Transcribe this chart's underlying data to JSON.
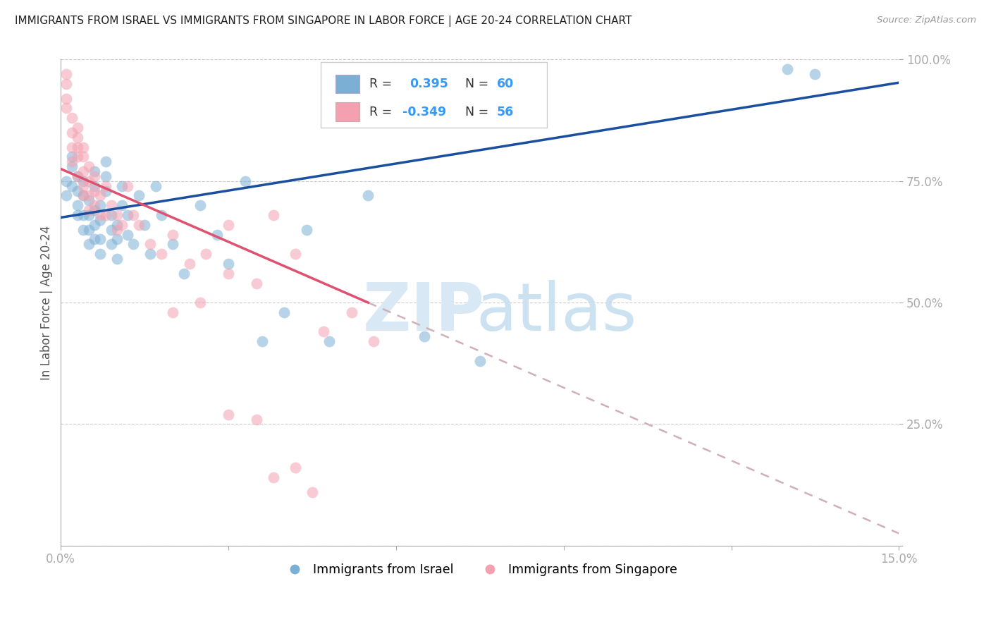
{
  "title": "IMMIGRANTS FROM ISRAEL VS IMMIGRANTS FROM SINGAPORE IN LABOR FORCE | AGE 20-24 CORRELATION CHART",
  "source": "Source: ZipAtlas.com",
  "ylabel": "In Labor Force | Age 20-24",
  "israel_color": "#7bafd4",
  "singapore_color": "#f4a0b0",
  "trendline_israel_color": "#1a4fa0",
  "trendline_singapore_color": "#e05070",
  "trendline_dashed_color": "#d0b0b8",
  "background_color": "#ffffff",
  "grid_color": "#cccccc",
  "title_color": "#222222",
  "axis_color": "#3399ff",
  "legend_box_color": "#eeeeee",
  "israel_scatter_x": [
    0.001,
    0.001,
    0.002,
    0.002,
    0.002,
    0.003,
    0.003,
    0.003,
    0.003,
    0.004,
    0.004,
    0.004,
    0.004,
    0.005,
    0.005,
    0.005,
    0.005,
    0.006,
    0.006,
    0.006,
    0.006,
    0.006,
    0.007,
    0.007,
    0.007,
    0.007,
    0.008,
    0.008,
    0.008,
    0.009,
    0.009,
    0.009,
    0.01,
    0.01,
    0.01,
    0.011,
    0.011,
    0.012,
    0.012,
    0.013,
    0.014,
    0.015,
    0.016,
    0.017,
    0.018,
    0.02,
    0.022,
    0.025,
    0.028,
    0.03,
    0.033,
    0.036,
    0.04,
    0.044,
    0.048,
    0.055,
    0.065,
    0.075,
    0.13,
    0.135
  ],
  "israel_scatter_y": [
    0.72,
    0.75,
    0.78,
    0.8,
    0.74,
    0.7,
    0.73,
    0.76,
    0.68,
    0.65,
    0.68,
    0.72,
    0.75,
    0.62,
    0.65,
    0.68,
    0.71,
    0.74,
    0.77,
    0.63,
    0.66,
    0.69,
    0.6,
    0.63,
    0.67,
    0.7,
    0.73,
    0.76,
    0.79,
    0.62,
    0.65,
    0.68,
    0.59,
    0.63,
    0.66,
    0.7,
    0.74,
    0.64,
    0.68,
    0.62,
    0.72,
    0.66,
    0.6,
    0.74,
    0.68,
    0.62,
    0.56,
    0.7,
    0.64,
    0.58,
    0.75,
    0.42,
    0.48,
    0.65,
    0.42,
    0.72,
    0.43,
    0.38,
    0.98,
    0.97
  ],
  "singapore_scatter_x": [
    0.001,
    0.001,
    0.001,
    0.001,
    0.002,
    0.002,
    0.002,
    0.002,
    0.003,
    0.003,
    0.003,
    0.003,
    0.003,
    0.004,
    0.004,
    0.004,
    0.004,
    0.004,
    0.005,
    0.005,
    0.005,
    0.005,
    0.006,
    0.006,
    0.006,
    0.007,
    0.007,
    0.008,
    0.008,
    0.009,
    0.01,
    0.01,
    0.011,
    0.012,
    0.013,
    0.014,
    0.016,
    0.018,
    0.02,
    0.023,
    0.026,
    0.03,
    0.035,
    0.038,
    0.042,
    0.047,
    0.052,
    0.056,
    0.03,
    0.035,
    0.042,
    0.02,
    0.025,
    0.03,
    0.038,
    0.045
  ],
  "singapore_scatter_y": [
    0.97,
    0.95,
    0.92,
    0.9,
    0.88,
    0.85,
    0.82,
    0.79,
    0.86,
    0.84,
    0.82,
    0.8,
    0.76,
    0.82,
    0.8,
    0.77,
    0.74,
    0.72,
    0.78,
    0.75,
    0.72,
    0.69,
    0.76,
    0.73,
    0.7,
    0.72,
    0.68,
    0.74,
    0.68,
    0.7,
    0.68,
    0.65,
    0.66,
    0.74,
    0.68,
    0.66,
    0.62,
    0.6,
    0.64,
    0.58,
    0.6,
    0.56,
    0.54,
    0.68,
    0.6,
    0.44,
    0.48,
    0.42,
    0.27,
    0.26,
    0.16,
    0.48,
    0.5,
    0.66,
    0.14,
    0.11
  ]
}
